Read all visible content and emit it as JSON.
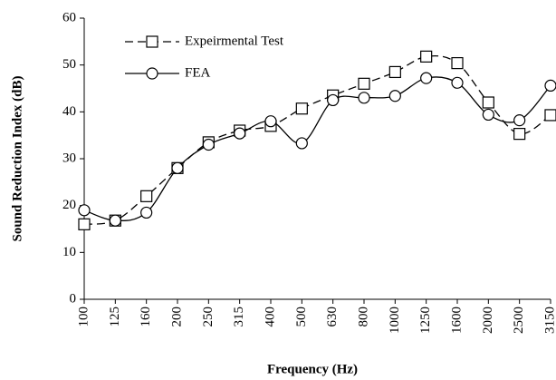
{
  "chart_data": {
    "type": "line",
    "xlabel": "Frequency (Hz)",
    "ylabel": "Sound Reduction Index (dB)",
    "categories": [
      "100",
      "125",
      "160",
      "200",
      "250",
      "315",
      "400",
      "500",
      "630",
      "800",
      "1000",
      "1250",
      "1600",
      "2000",
      "2500",
      "3150"
    ],
    "series": [
      {
        "name": "Expeirmental Test",
        "color": "#000000",
        "linestyle": "dashed",
        "marker": "square",
        "values": [
          16,
          16.8,
          22,
          28,
          33.5,
          36,
          37,
          40.7,
          43.5,
          46,
          48.5,
          51.8,
          50.4,
          42,
          35.3,
          39.3
        ]
      },
      {
        "name": "FEA",
        "color": "#000000",
        "linestyle": "solid",
        "marker": "circle",
        "values": [
          19,
          16.8,
          18.5,
          28,
          33,
          35.4,
          38,
          33.3,
          42.5,
          43,
          43.4,
          47.2,
          46.2,
          39.4,
          38.2,
          45.6
        ]
      }
    ],
    "ylim": [
      0,
      60
    ],
    "yticks": [
      0,
      10,
      20,
      30,
      40,
      50,
      60
    ],
    "grid": false,
    "legend": "upper left",
    "smooth": true
  }
}
